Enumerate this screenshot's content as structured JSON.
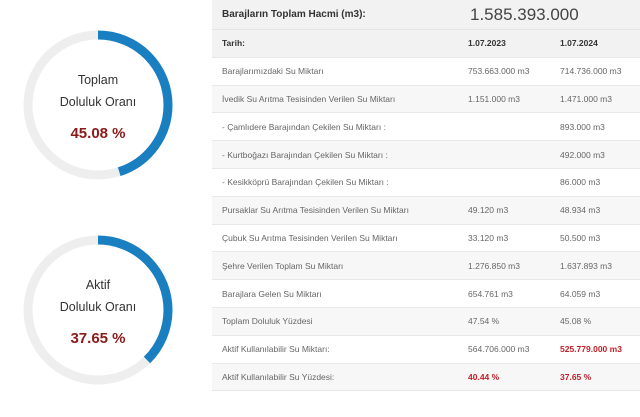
{
  "gauges": [
    {
      "label1": "Toplam",
      "label2": "Doluluk Oranı",
      "value_text": "45.08 %",
      "value": 45.08,
      "color": "#1a7fc1",
      "track_color": "#eeeeee"
    },
    {
      "label1": "Aktif",
      "label2": "Doluluk Oranı",
      "value_text": "37.65 %",
      "value": 37.65,
      "color": "#1a7fc1",
      "track_color": "#eeeeee"
    }
  ],
  "table": {
    "title_label": "Barajların Toplam Hacmi (m3):",
    "title_value": "1.585.393.000",
    "col_headers": [
      "Tarih:",
      "1.07.2023",
      "1.07.2024"
    ],
    "rows": [
      [
        "Barajlarımızdaki Su Miktarı",
        "753.663.000 m3",
        "714.736.000 m3"
      ],
      [
        "İvedik Su Arıtma Tesisinden Verilen Su Miktarı",
        "1.151.000 m3",
        "1.471.000 m3"
      ],
      [
        "- Çamlıdere Barajından Çekilen Su Miktarı :",
        "",
        "893.000 m3"
      ],
      [
        "- Kurtboğazı Barajından Çekilen Su Miktarı :",
        "",
        "492.000 m3"
      ],
      [
        "- Kesikköprü Barajından Çekilen Su Miktarı :",
        "",
        "86.000 m3"
      ],
      [
        "Pursaklar Su Arıtma Tesisinden Verilen Su Miktarı",
        "49.120 m3",
        "48.934 m3"
      ],
      [
        "Çubuk Su Arıtma Tesisinden Verilen Su Miktarı",
        "33.120 m3",
        "50.500 m3"
      ],
      [
        "Şehre Verilen Toplam Su Miktarı",
        "1.276.850 m3",
        "1.637.893 m3"
      ],
      [
        "Barajlara Gelen Su Miktarı",
        "654.761 m3",
        "64.059 m3"
      ],
      [
        "Toplam Doluluk Yüzdesi",
        "47.54 %",
        "45.08 %"
      ],
      [
        "Aktif Kullanılabilir Su Miktarı:",
        "564.706.000 m3",
        "525.779.000 m3"
      ],
      [
        "Aktif Kullanılabilir Su Yüzdesi:",
        "40.44 %",
        "37.65 %"
      ]
    ]
  }
}
